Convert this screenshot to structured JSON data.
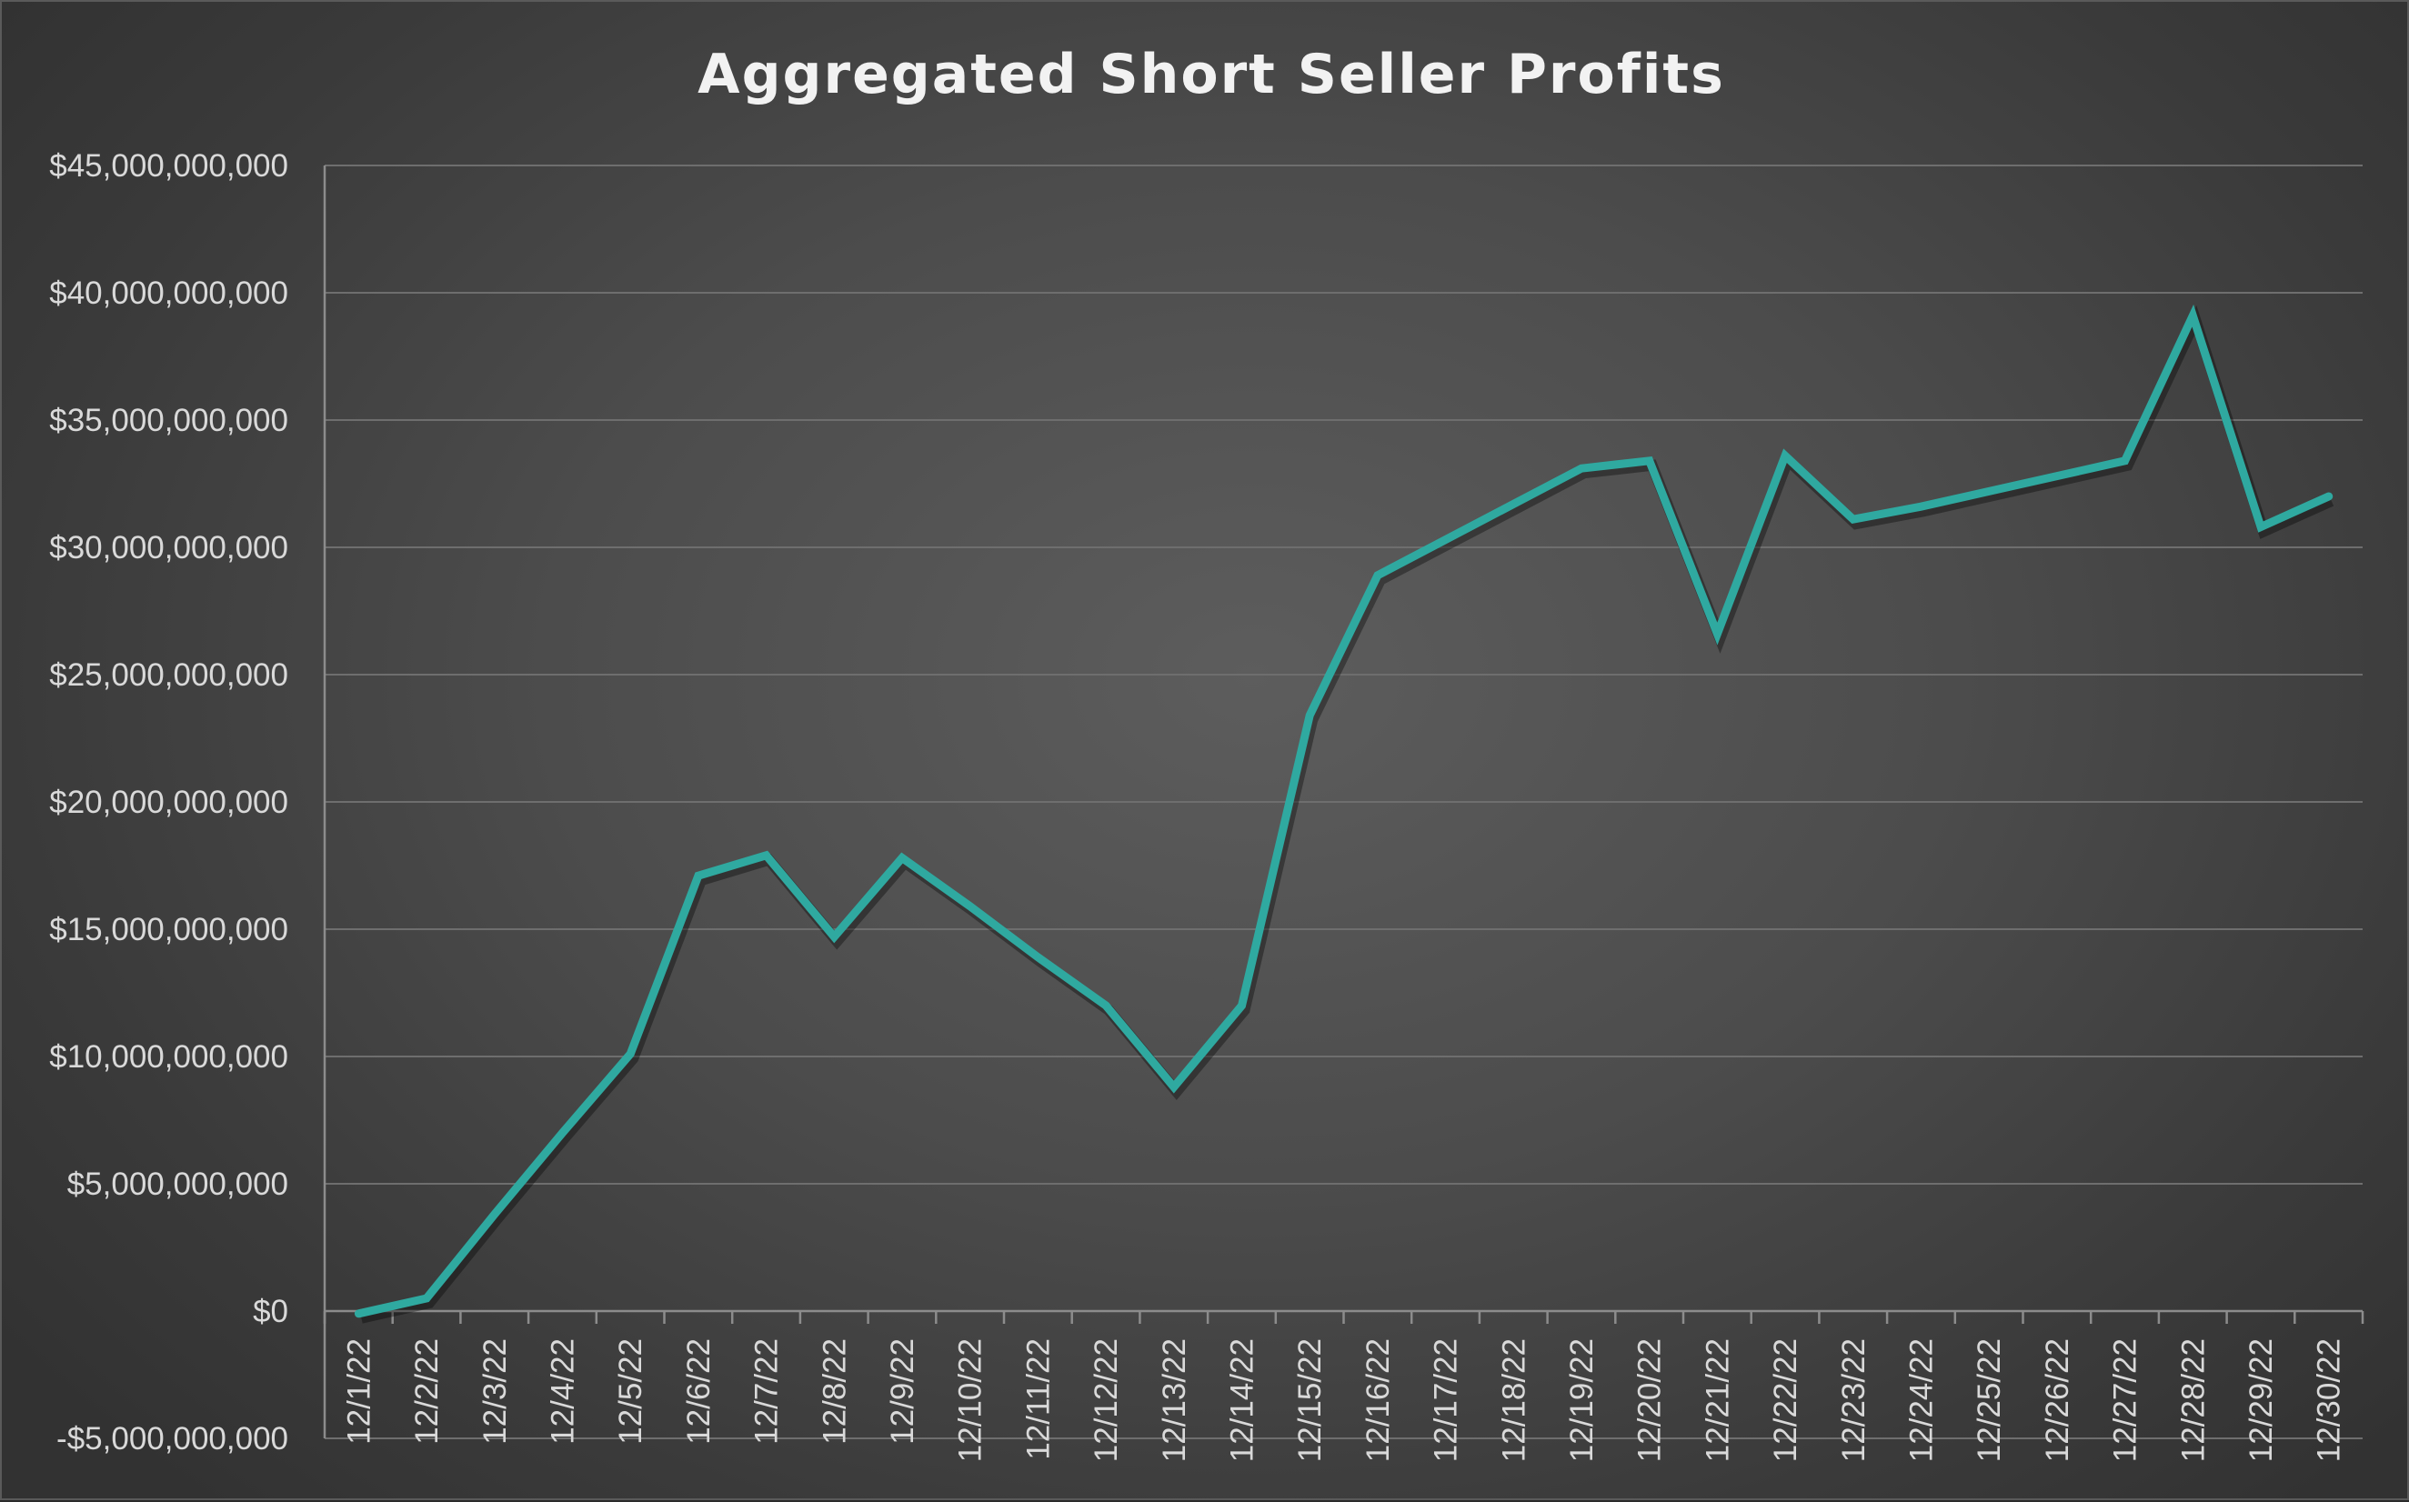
{
  "chart_data": {
    "type": "line",
    "title": "Aggregated Short Seller Profits",
    "xlabel": "",
    "ylabel": "",
    "ylim": [
      -5000000000,
      45000000000
    ],
    "y_ticks": [
      45000000000,
      40000000000,
      35000000000,
      30000000000,
      25000000000,
      20000000000,
      15000000000,
      10000000000,
      5000000000,
      0,
      -5000000000
    ],
    "y_tick_labels": [
      "$45,000,000,000",
      "$40,000,000,000",
      "$35,000,000,000",
      "$30,000,000,000",
      "$25,000,000,000",
      "$20,000,000,000",
      "$15,000,000,000",
      "$10,000,000,000",
      "$5,000,000,000",
      "$0",
      "-$5,000,000,000"
    ],
    "categories": [
      "12/1/22",
      "12/2/22",
      "12/3/22",
      "12/4/22",
      "12/5/22",
      "12/6/22",
      "12/7/22",
      "12/8/22",
      "12/9/22",
      "12/10/22",
      "12/11/22",
      "12/12/22",
      "12/13/22",
      "12/14/22",
      "12/15/22",
      "12/16/22",
      "12/17/22",
      "12/18/22",
      "12/19/22",
      "12/20/22",
      "12/21/22",
      "12/22/22",
      "12/23/22",
      "12/24/22",
      "12/25/22",
      "12/26/22",
      "12/27/22",
      "12/28/22",
      "12/29/22",
      "12/30/22"
    ],
    "series": [
      {
        "values": [
          -100000000,
          500000000,
          3800000000,
          7000000000,
          10100000000,
          17100000000,
          17900000000,
          14700000000,
          17800000000,
          15900000000,
          13900000000,
          12000000000,
          8800000000,
          12000000000,
          23400000000,
          28900000000,
          30300000000,
          31700000000,
          33100000000,
          33400000000,
          26600000000,
          33600000000,
          31100000000,
          31600000000,
          32200000000,
          32800000000,
          33400000000,
          39100000000,
          30800000000,
          32000000000
        ]
      }
    ],
    "grid": true,
    "legend": "none",
    "colors": {
      "series": "#2fa9a0",
      "background": "#4c4c4c"
    }
  }
}
